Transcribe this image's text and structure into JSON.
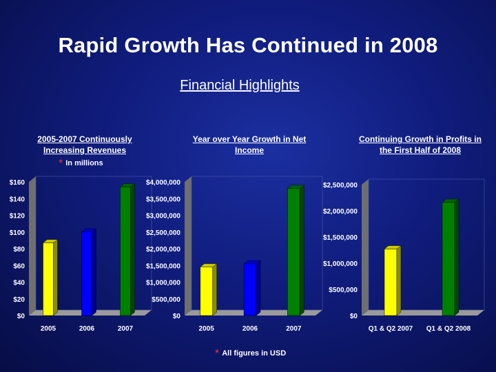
{
  "slide": {
    "title": "Rapid Growth Has Continued in 2008",
    "subtitle": "Financial Highlights",
    "footnote_top": "In millions",
    "footnote_bottom": "All figures in USD"
  },
  "colors": {
    "background": "#101c7c",
    "yellow": "#ffff00",
    "blue": "#0000ff",
    "green": "#008000",
    "footnote_star": "#ee3333"
  },
  "chart_data": [
    {
      "type": "bar",
      "title": "2005-2007 Continuously Increasing Revenues",
      "categories": [
        "2005",
        "2006",
        "2007"
      ],
      "values": [
        87,
        100,
        154
      ],
      "colors": [
        "#ffff00",
        "#0000ff",
        "#008000"
      ],
      "ylim": [
        0,
        160
      ],
      "yticks": [
        0,
        20,
        40,
        60,
        80,
        100,
        120,
        140,
        160
      ],
      "ytick_labels": [
        "$0",
        "$20",
        "$40",
        "$60",
        "$80",
        "$100",
        "$120",
        "$140",
        "$160"
      ],
      "xlabel": "",
      "ylabel": "",
      "grid": false,
      "legend": false
    },
    {
      "type": "bar",
      "title": "Year over Year Growth in Net Income",
      "categories": [
        "2005",
        "2006",
        "2007"
      ],
      "values": [
        1450000,
        1550000,
        3800000
      ],
      "colors": [
        "#ffff00",
        "#0000ff",
        "#008000"
      ],
      "ylim": [
        0,
        4000000
      ],
      "yticks": [
        0,
        500000,
        1000000,
        1500000,
        2000000,
        2500000,
        3000000,
        3500000,
        4000000
      ],
      "ytick_labels": [
        "$0",
        "$500,000",
        "$1,000,000",
        "$1,500,000",
        "$2,000,000",
        "$2,500,000",
        "$3,000,000",
        "$3,500,000",
        "$4,000,000"
      ],
      "xlabel": "",
      "ylabel": "",
      "grid": false,
      "legend": false
    },
    {
      "type": "bar",
      "title": "Continuing Growth in Profits in the First Half of 2008",
      "categories": [
        "Q1 & Q2 2007",
        "Q1 & Q2 2008"
      ],
      "values": [
        1270000,
        2160000
      ],
      "colors": [
        "#ffff00",
        "#008000"
      ],
      "ylim": [
        0,
        2500000
      ],
      "yticks": [
        0,
        500000,
        1000000,
        1500000,
        2000000,
        2500000
      ],
      "ytick_labels": [
        "$0",
        "$500,000",
        "$1,000,000",
        "$1,500,000",
        "$2,000,000",
        "$2,500,000"
      ],
      "xlabel": "",
      "ylabel": "",
      "grid": false,
      "legend": false
    }
  ]
}
